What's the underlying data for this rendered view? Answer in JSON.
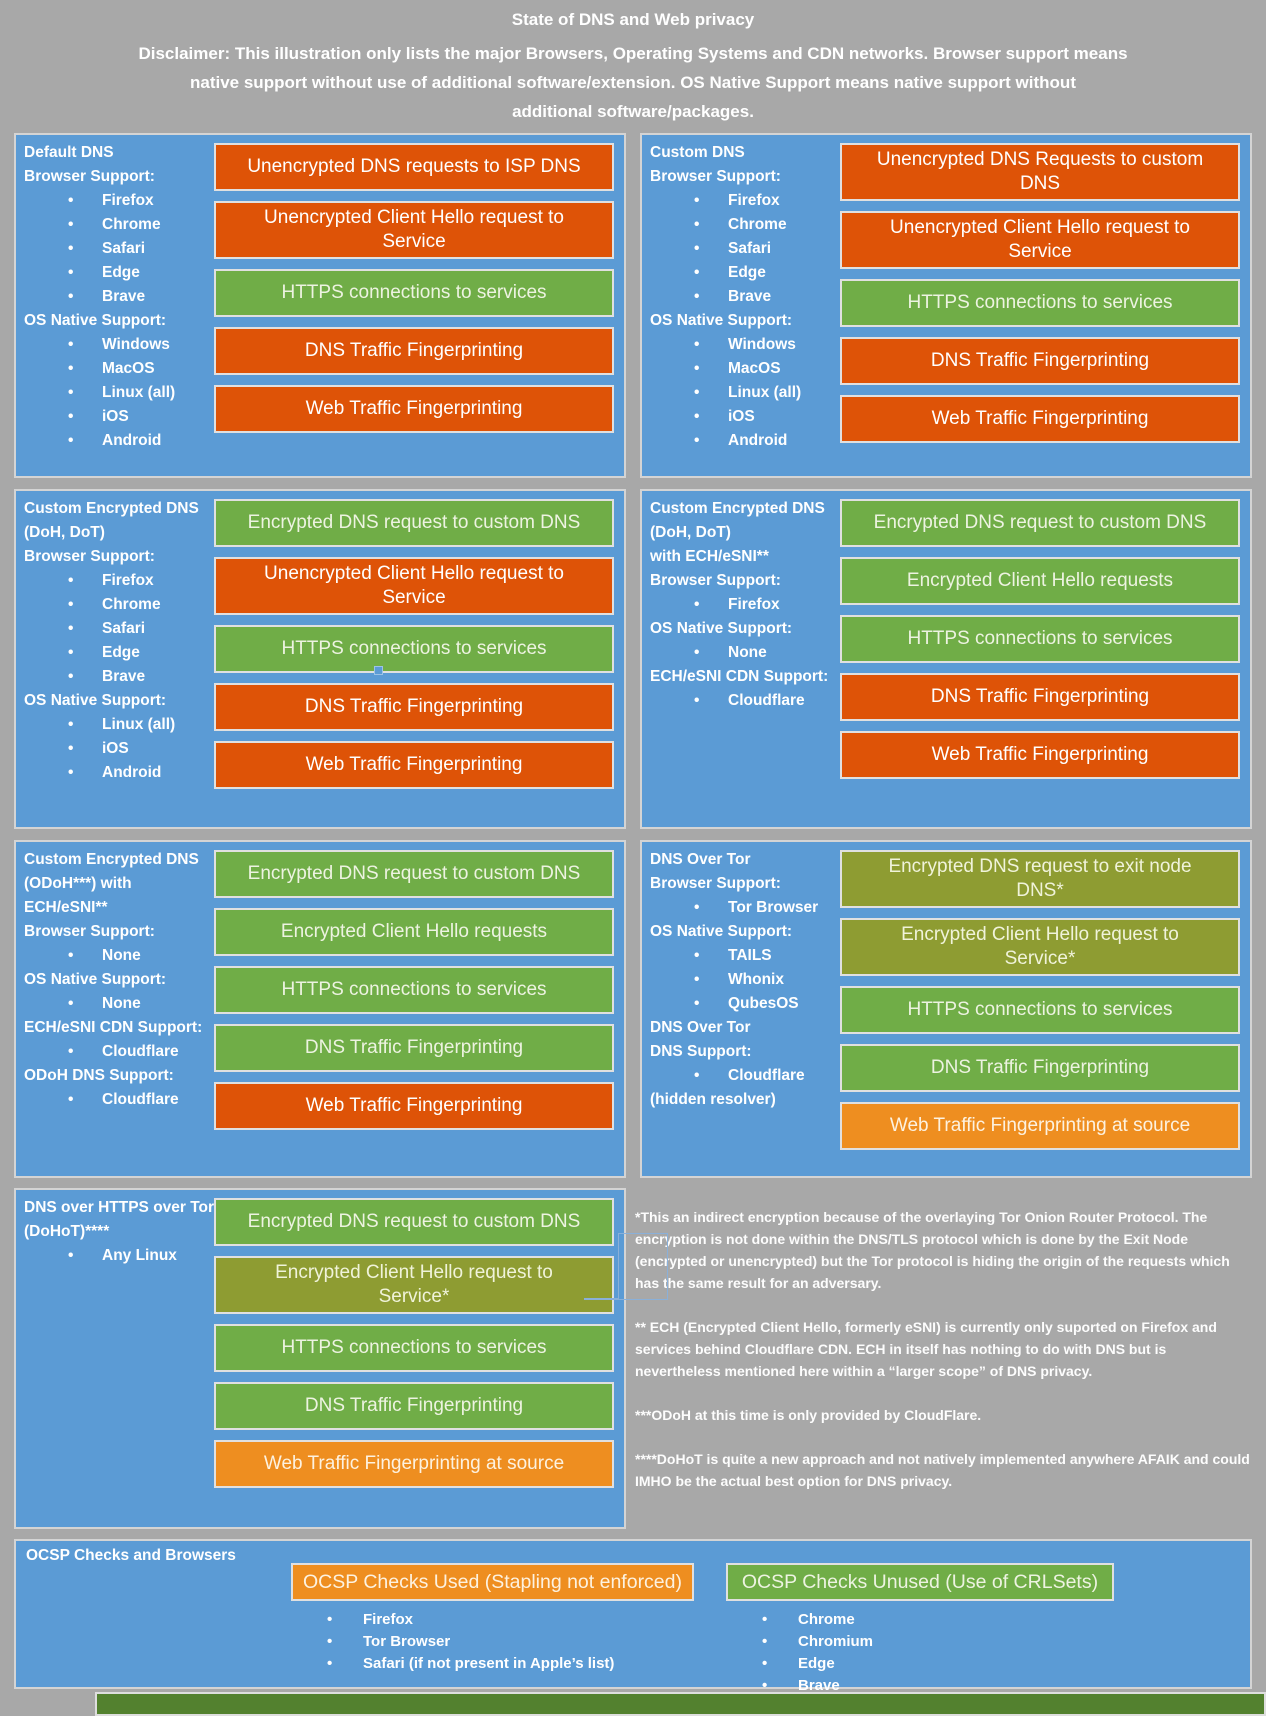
{
  "header": {
    "title": "State of DNS and Web privacy",
    "disclaimer": "Disclaimer: This illustration only lists the major Browsers, Operating Systems and CDN networks. Browser support means\nnative support without use of additional software/extension. OS Native Support means native support without\nadditional software/packages."
  },
  "colors": {
    "background": "#a8a8a8",
    "panel_blue": "#5b9bd5",
    "bar_bad_orange": "#de5307",
    "bar_good_green": "#70ad47",
    "bar_indirect_olive": "#8e9c32",
    "bar_warn_amber": "#ee8e20"
  },
  "panels": [
    {
      "id": "default-dns",
      "lines": [
        {
          "t": "h",
          "text": "Default DNS"
        },
        {
          "t": "h",
          "text": "Browser Support:"
        },
        {
          "t": "b",
          "text": "Firefox"
        },
        {
          "t": "b",
          "text": "Chrome"
        },
        {
          "t": "b",
          "text": "Safari"
        },
        {
          "t": "b",
          "text": "Edge"
        },
        {
          "t": "b",
          "text": "Brave"
        },
        {
          "t": "h",
          "text": "OS Native Support:"
        },
        {
          "t": "b",
          "text": "Windows"
        },
        {
          "t": "b",
          "text": "MacOS"
        },
        {
          "t": "b",
          "text": "Linux (all)"
        },
        {
          "t": "b",
          "text": "iOS"
        },
        {
          "t": "b",
          "text": "Android"
        }
      ],
      "bars": [
        {
          "color": "red",
          "label": "Unencrypted DNS requests to ISP DNS"
        },
        {
          "color": "red",
          "label": "Unencrypted Client Hello request to\nService"
        },
        {
          "color": "green",
          "label": "HTTPS connections to services"
        },
        {
          "color": "red",
          "label": "DNS Traffic Fingerprinting"
        },
        {
          "color": "red",
          "label": "Web Traffic Fingerprinting"
        }
      ]
    },
    {
      "id": "custom-dns",
      "lines": [
        {
          "t": "h",
          "text": "Custom DNS"
        },
        {
          "t": "h",
          "text": "Browser Support:"
        },
        {
          "t": "b",
          "text": "Firefox"
        },
        {
          "t": "b",
          "text": "Chrome"
        },
        {
          "t": "b",
          "text": "Safari"
        },
        {
          "t": "b",
          "text": "Edge"
        },
        {
          "t": "b",
          "text": "Brave"
        },
        {
          "t": "h",
          "text": "OS Native Support:"
        },
        {
          "t": "b",
          "text": "Windows"
        },
        {
          "t": "b",
          "text": "MacOS"
        },
        {
          "t": "b",
          "text": "Linux (all)"
        },
        {
          "t": "b",
          "text": "iOS"
        },
        {
          "t": "b",
          "text": "Android"
        }
      ],
      "bars": [
        {
          "color": "red",
          "label": "Unencrypted DNS Requests to custom\nDNS"
        },
        {
          "color": "red",
          "label": "Unencrypted Client Hello request to\nService"
        },
        {
          "color": "green",
          "label": "HTTPS connections to services"
        },
        {
          "color": "red",
          "label": "DNS Traffic Fingerprinting"
        },
        {
          "color": "red",
          "label": "Web Traffic Fingerprinting"
        }
      ]
    },
    {
      "id": "custom-encrypted-dns",
      "lines": [
        {
          "t": "h",
          "text": "Custom Encrypted DNS"
        },
        {
          "t": "h",
          "text": "(DoH, DoT)"
        },
        {
          "t": "h",
          "text": "Browser Support:"
        },
        {
          "t": "b",
          "text": "Firefox"
        },
        {
          "t": "b",
          "text": "Chrome"
        },
        {
          "t": "b",
          "text": "Safari"
        },
        {
          "t": "b",
          "text": "Edge"
        },
        {
          "t": "b",
          "text": "Brave"
        },
        {
          "t": "h",
          "text": "OS Native Support:"
        },
        {
          "t": "b",
          "text": "Linux (all)"
        },
        {
          "t": "b",
          "text": "iOS"
        },
        {
          "t": "b",
          "text": "Android"
        }
      ],
      "bars": [
        {
          "color": "green",
          "label": "Encrypted DNS request to custom DNS"
        },
        {
          "color": "red",
          "label": "Unencrypted Client Hello request to\nService"
        },
        {
          "color": "green",
          "label": "HTTPS connections to services"
        },
        {
          "color": "red",
          "label": "DNS Traffic Fingerprinting"
        },
        {
          "color": "red",
          "label": "Web Traffic Fingerprinting"
        }
      ]
    },
    {
      "id": "custom-encrypted-dns-ech",
      "lines": [
        {
          "t": "h",
          "text": "Custom Encrypted DNS"
        },
        {
          "t": "h",
          "text": "(DoH, DoT)"
        },
        {
          "t": "h",
          "text": "with ECH/eSNI**"
        },
        {
          "t": "h",
          "text": "Browser Support:"
        },
        {
          "t": "b",
          "text": "Firefox"
        },
        {
          "t": "h",
          "text": "OS Native Support:"
        },
        {
          "t": "b",
          "text": "None"
        },
        {
          "t": "h",
          "text": "ECH/eSNI CDN Support:"
        },
        {
          "t": "b",
          "text": "Cloudflare"
        }
      ],
      "bars": [
        {
          "color": "green",
          "label": "Encrypted DNS request to custom DNS"
        },
        {
          "color": "green",
          "label": "Encrypted Client Hello requests"
        },
        {
          "color": "green",
          "label": "HTTPS connections to services"
        },
        {
          "color": "red",
          "label": "DNS Traffic Fingerprinting"
        },
        {
          "color": "red",
          "label": "Web Traffic Fingerprinting"
        }
      ]
    },
    {
      "id": "custom-encrypted-dns-odoh",
      "lines": [
        {
          "t": "h",
          "text": "Custom Encrypted DNS"
        },
        {
          "t": "h",
          "text": "(ODoH***) with"
        },
        {
          "t": "h",
          "text": "ECH/eSNI**"
        },
        {
          "t": "h",
          "text": "Browser Support:"
        },
        {
          "t": "b",
          "text": "None"
        },
        {
          "t": "h",
          "text": "OS Native Support:"
        },
        {
          "t": "b",
          "text": "None"
        },
        {
          "t": "h",
          "text": "ECH/eSNI CDN Support:"
        },
        {
          "t": "b",
          "text": "Cloudflare"
        },
        {
          "t": "h",
          "text": "ODoH DNS Support:"
        },
        {
          "t": "b",
          "text": "Cloudflare"
        }
      ],
      "bars": [
        {
          "color": "green",
          "label": "Encrypted DNS request to custom DNS"
        },
        {
          "color": "green",
          "label": "Encrypted Client Hello requests"
        },
        {
          "color": "green",
          "label": "HTTPS connections to services"
        },
        {
          "color": "green",
          "label": "DNS Traffic Fingerprinting"
        },
        {
          "color": "red",
          "label": "Web Traffic Fingerprinting"
        }
      ]
    },
    {
      "id": "dns-over-tor",
      "lines": [
        {
          "t": "h",
          "text": "DNS Over Tor"
        },
        {
          "t": "h",
          "text": "Browser Support:"
        },
        {
          "t": "b",
          "text": "Tor Browser"
        },
        {
          "t": "h",
          "text": "OS Native Support:"
        },
        {
          "t": "b",
          "text": "TAILS"
        },
        {
          "t": "b",
          "text": "Whonix"
        },
        {
          "t": "b",
          "text": "QubesOS"
        },
        {
          "t": "h",
          "text": "DNS Over Tor"
        },
        {
          "t": "h",
          "text": "DNS Support:"
        },
        {
          "t": "b",
          "text": "Cloudflare"
        },
        {
          "t": "h",
          "text": "(hidden resolver)"
        }
      ],
      "bars": [
        {
          "color": "olive",
          "label": "Encrypted DNS request to exit node\nDNS*"
        },
        {
          "color": "olive",
          "label": "Encrypted Client Hello request to\nService*"
        },
        {
          "color": "green",
          "label": "HTTPS connections to services"
        },
        {
          "color": "green",
          "label": "DNS Traffic Fingerprinting"
        },
        {
          "color": "amber",
          "label": "Web Traffic Fingerprinting at source"
        }
      ]
    },
    {
      "id": "dohot",
      "lines": [
        {
          "t": "h",
          "text": "DNS over HTTPS over Tor"
        },
        {
          "t": "h",
          "text": "(DoHoT)****"
        },
        {
          "t": "b",
          "text": "Any Linux"
        }
      ],
      "bars": [
        {
          "color": "green",
          "label": "Encrypted DNS request to custom DNS"
        },
        {
          "color": "olive",
          "label": "Encrypted Client Hello request to\nService*"
        },
        {
          "color": "green",
          "label": "HTTPS connections to services"
        },
        {
          "color": "green",
          "label": "DNS Traffic Fingerprinting"
        },
        {
          "color": "amber",
          "label": "Web Traffic Fingerprinting at source"
        }
      ]
    }
  ],
  "footnotes": [
    "*This an indirect encryption because of the overlaying Tor Onion Router Protocol. The encryption is not done within the DNS/TLS protocol which is done by the Exit Node (encrypted or unencrypted) but the Tor protocol is hiding the origin of the requests which has the same result for an adversary.",
    "** ECH (Encrypted Client Hello, formerly eSNI) is currently only suported on Firefox and services behind Cloudflare CDN. ECH in itself has nothing to do with DNS but is nevertheless mentioned here within a “larger scope” of DNS privacy.",
    "***ODoH at this time is only provided by CloudFlare.",
    "****DoHoT is quite a new approach and not natively implemented anywhere AFAIK and could IMHO be the actual best option for DNS privacy."
  ],
  "ocsp": {
    "heading": "OCSP Checks and Browsers",
    "columns": [
      {
        "color": "amber",
        "bar": "OCSP Checks Used (Stapling not enforced)",
        "items": [
          "Firefox",
          "Tor Browser",
          "Safari (if not present in Apple’s list)"
        ]
      },
      {
        "color": "green",
        "bar": "OCSP Checks Unused (Use of CRLSets)",
        "items": [
          "Chrome",
          "Chromium",
          "Edge",
          "Brave"
        ]
      }
    ]
  }
}
